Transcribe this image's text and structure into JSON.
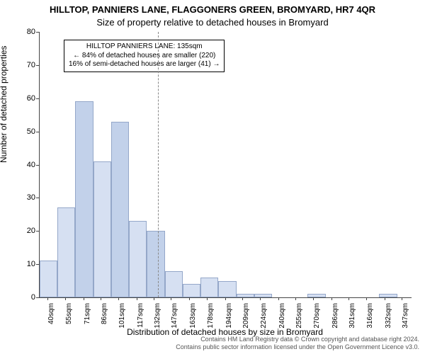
{
  "titles": {
    "line1": "HILLTOP, PANNIERS LANE, FLAGGONERS GREEN, BROMYARD, HR7 4QR",
    "line2": "Size of property relative to detached houses in Bromyard"
  },
  "ylabel": "Number of detached properties",
  "xlabel": "Distribution of detached houses by size in Bromyard",
  "footer": {
    "line1": "Contains HM Land Registry data © Crown copyright and database right 2024.",
    "line2": "Contains public sector information licensed under the Open Government Licence v3.0."
  },
  "annotation": {
    "line1": "HILLTOP PANNIERS LANE: 135sqm",
    "line2": "← 84% of detached houses are smaller (220)",
    "line3": "16% of semi-detached houses are larger (41) →"
  },
  "chart": {
    "type": "histogram",
    "background_color": "#ffffff",
    "axis_color": "#444444",
    "bar_fill_opaque": "#d6e0f2",
    "bar_fill_highlight": "#c2d1ea",
    "bar_border": "#94a7c9",
    "ref_line_color": "#888888",
    "ref_value_sqm": 135,
    "x_min": 32.5,
    "x_max": 355,
    "bin_width_sqm": 15.5,
    "ylim": [
      0,
      80
    ],
    "ytick_step": 10,
    "title_fontsize": 13,
    "label_fontsize": 12,
    "tick_fontsize": 10,
    "xticks": [
      "40sqm",
      "55sqm",
      "71sqm",
      "86sqm",
      "101sqm",
      "117sqm",
      "132sqm",
      "147sqm",
      "163sqm",
      "178sqm",
      "194sqm",
      "209sqm",
      "224sqm",
      "240sqm",
      "255sqm",
      "270sqm",
      "286sqm",
      "301sqm",
      "316sqm",
      "332sqm",
      "347sqm"
    ],
    "bars": [
      {
        "h": 11,
        "highlight": false
      },
      {
        "h": 27,
        "highlight": false
      },
      {
        "h": 59,
        "highlight": true
      },
      {
        "h": 41,
        "highlight": false
      },
      {
        "h": 53,
        "highlight": true
      },
      {
        "h": 23,
        "highlight": false
      },
      {
        "h": 20,
        "highlight": true
      },
      {
        "h": 8,
        "highlight": false
      },
      {
        "h": 4,
        "highlight": false
      },
      {
        "h": 6,
        "highlight": false
      },
      {
        "h": 5,
        "highlight": false
      },
      {
        "h": 1,
        "highlight": false
      },
      {
        "h": 1,
        "highlight": false
      },
      {
        "h": 0,
        "highlight": false
      },
      {
        "h": 0,
        "highlight": false
      },
      {
        "h": 1,
        "highlight": false
      },
      {
        "h": 0,
        "highlight": false
      },
      {
        "h": 0,
        "highlight": false
      },
      {
        "h": 0,
        "highlight": false
      },
      {
        "h": 1,
        "highlight": false
      }
    ]
  }
}
